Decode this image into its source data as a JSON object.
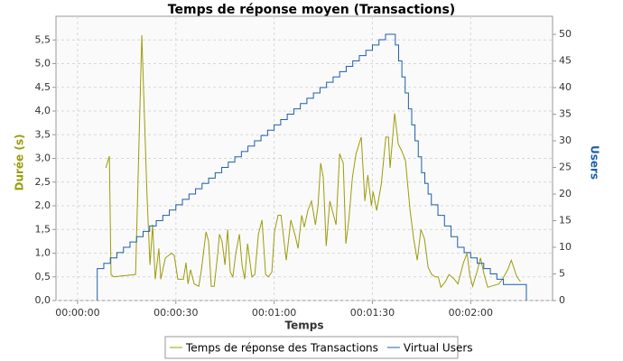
{
  "chart_data": {
    "type": "line",
    "title": "Temps de réponse moyen (Transactions)",
    "xlabel": "Temps",
    "ylabel": "Durée (s)",
    "y2label": "Users",
    "xlim": [
      -6.6,
      145
    ],
    "ylim": [
      0,
      6.0
    ],
    "y2lim": [
      0,
      53.4
    ],
    "xticks": [
      {
        "value": 0,
        "label": "00:00:00"
      },
      {
        "value": 30,
        "label": "00:00:30"
      },
      {
        "value": 60,
        "label": "00:01:00"
      },
      {
        "value": 90,
        "label": "00:01:30"
      },
      {
        "value": 120,
        "label": "00:02:00"
      }
    ],
    "yticks": [
      {
        "value": 0,
        "label": "0,0"
      },
      {
        "value": 0.5,
        "label": "0,5"
      },
      {
        "value": 1,
        "label": "1,0"
      },
      {
        "value": 1.5,
        "label": "1,5"
      },
      {
        "value": 2,
        "label": "2,0"
      },
      {
        "value": 2.5,
        "label": "2,5"
      },
      {
        "value": 3,
        "label": "3,0"
      },
      {
        "value": 3.5,
        "label": "3,5"
      },
      {
        "value": 4,
        "label": "4,0"
      },
      {
        "value": 4.5,
        "label": "4,5"
      },
      {
        "value": 5,
        "label": "5,0"
      },
      {
        "value": 5.5,
        "label": "5,5"
      }
    ],
    "y2ticks": [
      0,
      5,
      10,
      15,
      20,
      25,
      30,
      35,
      40,
      45,
      50
    ],
    "grid": true,
    "series": [
      {
        "name": "Temps de réponse des Transactions",
        "color": "#9c9c0c",
        "axis": "y",
        "x": [
          8.6,
          9.7,
          10.2,
          11.0,
          17.7,
          19.6,
          21.2,
          22.1,
          22.9,
          23.7,
          24.8,
          25.4,
          26.8,
          28.7,
          29.5,
          30.6,
          32.3,
          33.1,
          33.7,
          34.5,
          35.6,
          37.0,
          37.8,
          39.2,
          40.0,
          40.8,
          41.7,
          42.8,
          43.3,
          44.1,
          45.0,
          45.8,
          46.6,
          47.4,
          48.3,
          49.4,
          50.2,
          51.0,
          51.9,
          53.2,
          54.1,
          55.2,
          56.3,
          57.4,
          58.2,
          59.3,
          60.1,
          61.2,
          62.1,
          63.7,
          65.1,
          66.5,
          67.3,
          68.4,
          69.2,
          70.3,
          71.4,
          72.6,
          73.4,
          74.2,
          75.0,
          75.9,
          77.0,
          78.9,
          80.0,
          81.1,
          81.9,
          82.8,
          83.9,
          85.0,
          86.6,
          87.7,
          88.6,
          89.7,
          90.2,
          91.3,
          92.7,
          94.1,
          94.9,
          95.4,
          96.8,
          97.9,
          99.0,
          100.1,
          101.5,
          102.6,
          103.7,
          104.8,
          105.9,
          107.0,
          108.1,
          109.2,
          110.1,
          110.9,
          112.3,
          113.4,
          115.0,
          116.1,
          117.8,
          118.9,
          119.7,
          120.6,
          121.9,
          123.0,
          124.1,
          125.2,
          128.6,
          129.7,
          131.3,
          132.4,
          134.1,
          135.2
        ],
        "values": [
          2.8,
          3.05,
          0.55,
          0.5,
          0.55,
          5.6,
          2.2,
          0.75,
          1.6,
          0.45,
          1.1,
          0.45,
          0.9,
          1.0,
          0.95,
          0.45,
          0.45,
          0.8,
          0.35,
          0.65,
          0.35,
          0.3,
          0.65,
          1.45,
          1.25,
          0.3,
          0.3,
          1.0,
          1.4,
          1.25,
          0.75,
          1.5,
          0.6,
          0.5,
          1.0,
          1.4,
          0.75,
          0.45,
          1.2,
          0.5,
          0.55,
          1.4,
          1.7,
          0.55,
          0.5,
          0.6,
          1.45,
          1.8,
          1.8,
          0.85,
          1.7,
          1.35,
          1.1,
          1.8,
          1.55,
          1.9,
          2.1,
          1.6,
          2.0,
          2.9,
          2.6,
          1.15,
          2.1,
          1.6,
          3.1,
          2.9,
          1.2,
          1.7,
          2.6,
          3.1,
          3.45,
          2.1,
          2.65,
          2.0,
          2.3,
          1.9,
          2.45,
          3.45,
          3.45,
          2.8,
          3.95,
          3.3,
          3.15,
          2.95,
          1.9,
          1.3,
          0.85,
          1.5,
          1.3,
          0.7,
          0.55,
          0.5,
          0.5,
          0.28,
          0.4,
          0.55,
          0.45,
          0.35,
          0.8,
          1.0,
          0.55,
          0.3,
          0.6,
          0.9,
          0.55,
          0.28,
          0.35,
          0.45,
          0.65,
          0.85,
          0.5,
          0.4
        ]
      },
      {
        "name": "Virtual Users",
        "color": "#1f5fa8",
        "axis": "y2",
        "step": true,
        "x": [
          6,
          6,
          8,
          10,
          12,
          14,
          16,
          18,
          20,
          22,
          24,
          26,
          28,
          30,
          32,
          34,
          36,
          38,
          40,
          42,
          44,
          46,
          48,
          50,
          52,
          54,
          56,
          58,
          60,
          62,
          64,
          66,
          68,
          70,
          72,
          74,
          76,
          78,
          80,
          82,
          84,
          86,
          88,
          90,
          92,
          94,
          97,
          98,
          99,
          100,
          101,
          102,
          103,
          104,
          105,
          106,
          107,
          108,
          110,
          112,
          114,
          116,
          118,
          120,
          122,
          124,
          126,
          128,
          130,
          137
        ],
        "values": [
          0,
          6,
          7,
          8,
          9,
          10,
          11,
          12,
          13,
          14,
          15,
          16,
          17,
          18,
          19,
          20,
          21,
          22,
          23,
          24,
          25,
          26,
          27,
          28,
          29,
          30,
          31,
          32,
          33,
          34,
          35,
          36,
          37,
          38,
          39,
          40,
          41,
          42,
          43,
          44,
          45,
          46,
          47,
          48,
          49,
          50,
          48,
          45,
          42,
          39,
          36,
          33,
          30,
          27,
          24,
          22,
          20,
          18,
          16,
          14,
          12,
          10,
          9,
          8,
          7,
          6,
          5,
          4,
          3,
          0
        ]
      }
    ]
  }
}
